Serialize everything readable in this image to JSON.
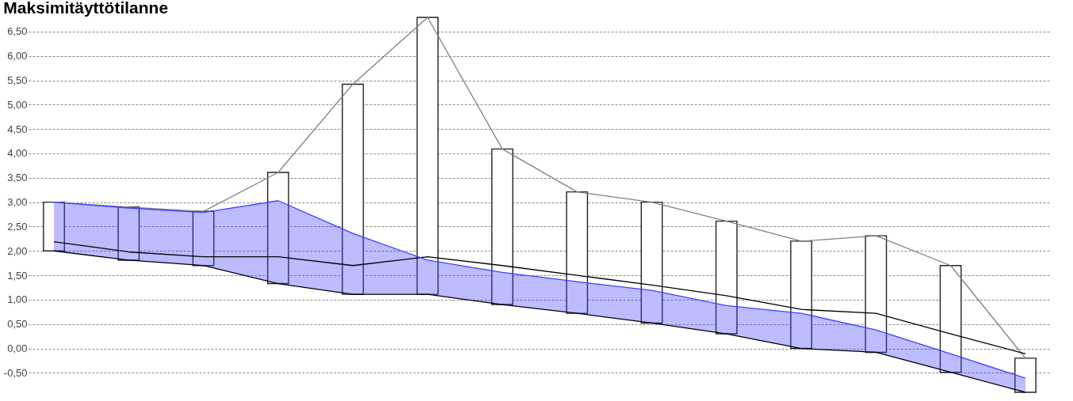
{
  "chart_data": {
    "type": "bar",
    "title": "Maksimitäyttötilanne",
    "categories": [
      null,
      null,
      null,
      null,
      null,
      null,
      null,
      null,
      null,
      null,
      null,
      null,
      null,
      null
    ],
    "series": [
      {
        "color": "#ffffff",
        "base": [
          2.0,
          1.81,
          1.7,
          1.33,
          1.11,
          1.11,
          0.9,
          0.72,
          0.52,
          0.3,
          0.0,
          -0.08,
          -0.49,
          -0.9
        ],
        "values": [
          1.0,
          1.09,
          1.11,
          2.28,
          4.31,
          5.68,
          3.19,
          2.49,
          2.48,
          2.31,
          2.2,
          2.39,
          2.19,
          0.7
        ]
      },
      {
        "type": "line",
        "color": "#808080",
        "values": [
          3.0,
          2.9,
          2.81,
          3.61,
          5.42,
          6.79,
          4.09,
          3.21,
          3.0,
          2.61,
          2.2,
          2.31,
          1.7,
          -0.2
        ]
      },
      {
        "type": "line",
        "color": "#000000",
        "values": [
          2.19,
          1.98,
          1.88,
          1.88,
          1.7,
          1.88,
          1.7,
          1.5,
          1.3,
          1.08,
          0.8,
          0.72,
          0.3,
          -0.11
        ]
      },
      {
        "type": "line",
        "color": "#000000",
        "values": [
          2.0,
          1.81,
          1.7,
          1.33,
          1.11,
          1.11,
          0.9,
          0.72,
          0.52,
          0.3,
          0.0,
          -0.08,
          -0.49,
          -0.9
        ]
      },
      {
        "type": "line",
        "color": "#4040ff",
        "values": [
          3.0,
          2.88,
          2.79,
          3.03,
          2.36,
          1.81,
          1.56,
          1.37,
          1.19,
          0.88,
          0.72,
          0.38,
          -0.11,
          -0.61
        ],
        "lower": [
          2.0,
          1.81,
          1.7,
          1.33,
          1.11,
          1.11,
          0.9,
          0.72,
          0.52,
          0.3,
          0.0,
          -0.08,
          -0.49,
          -0.9
        ],
        "upper": [
          3.0,
          2.88,
          2.79,
          3.03,
          2.36,
          1.81,
          1.56,
          1.37,
          1.19,
          0.88,
          0.72,
          0.38,
          -0.11,
          -0.61
        ]
      }
    ],
    "ylim": [
      -0.9,
      6.79
    ],
    "yticks": [
      {
        "value": -0.5,
        "label": "-0,50"
      },
      {
        "value": 0,
        "label": "0,00"
      },
      {
        "value": 0.5,
        "label": "0,50"
      },
      {
        "value": 1,
        "label": "1,00"
      },
      {
        "value": 1.5,
        "label": "1,50"
      },
      {
        "value": 2,
        "label": "2,00"
      },
      {
        "value": 2.5,
        "label": "2,50"
      },
      {
        "value": 3,
        "label": "3,00"
      },
      {
        "value": 3.5,
        "label": "3,50"
      },
      {
        "value": 4,
        "label": "4,00"
      },
      {
        "value": 4.5,
        "label": "4,50"
      },
      {
        "value": 5,
        "label": "5,00"
      },
      {
        "value": 5.5,
        "label": "5,50"
      },
      {
        "value": 6,
        "label": "6,00"
      },
      {
        "value": 6.5,
        "label": "6,50"
      }
    ],
    "grid": "y",
    "tick_labels": "y",
    "legend": false
  }
}
